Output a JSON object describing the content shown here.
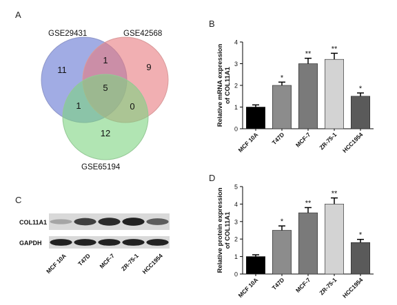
{
  "panels": {
    "a": "A",
    "b": "B",
    "c": "C",
    "d": "D"
  },
  "venn": {
    "sets": [
      {
        "name": "GSE29431",
        "color": "#6f7fd6"
      },
      {
        "name": "GSE42568",
        "color": "#e87a7e"
      },
      {
        "name": "GSE65194",
        "color": "#7dd381"
      }
    ],
    "counts": {
      "only_1": "11",
      "only_2": "9",
      "only_3": "12",
      "s12": "1",
      "s13": "1",
      "s23": "0",
      "s123": "5"
    }
  },
  "blot": {
    "rows": [
      {
        "label": "COL11A1",
        "intensities": [
          0.2,
          0.78,
          0.9,
          0.95,
          0.62
        ]
      },
      {
        "label": "GAPDH",
        "intensities": [
          0.95,
          0.95,
          0.95,
          0.95,
          0.95
        ]
      }
    ],
    "lanes": [
      "MCF 10A",
      "T47D",
      "MCF-7",
      "ZR-75-1",
      "HCC1954"
    ]
  },
  "chart_data": [
    {
      "type": "bar",
      "panel": "B",
      "categories": [
        "MCF 10A",
        "T47D",
        "MCF-7",
        "ZR-75-1",
        "HCC1954"
      ],
      "values": [
        1.0,
        2.0,
        3.0,
        3.2,
        1.5
      ],
      "errors": [
        0.1,
        0.15,
        0.25,
        0.28,
        0.15
      ],
      "significance": [
        "",
        "*",
        "**",
        "**",
        "*"
      ],
      "colors": [
        "#000000",
        "#8c8c8c",
        "#7a7a7a",
        "#d3d3d3",
        "#5a5a5a"
      ],
      "ylabel": "Relative mRNA expression of COL11A1",
      "ylabel_lines": [
        "Relative mRNA expression",
        "of COL11A1"
      ],
      "ylim": [
        0,
        4
      ],
      "yticks": [
        "0",
        "1",
        "2",
        "3",
        "4"
      ]
    },
    {
      "type": "bar",
      "panel": "D",
      "categories": [
        "MCF 10A",
        "T47D",
        "MCF-7",
        "ZR-75-1",
        "HCC1954"
      ],
      "values": [
        1.0,
        2.5,
        3.5,
        4.0,
        1.8
      ],
      "errors": [
        0.1,
        0.25,
        0.3,
        0.35,
        0.18
      ],
      "significance": [
        "",
        "*",
        "**",
        "**",
        "*"
      ],
      "colors": [
        "#000000",
        "#8c8c8c",
        "#7a7a7a",
        "#d3d3d3",
        "#5a5a5a"
      ],
      "ylabel": "Relative protein expression of COL11A1",
      "ylabel_lines": [
        "Relative protein expression",
        "of COL11A1"
      ],
      "ylim": [
        0,
        5
      ],
      "yticks": [
        "0",
        "1",
        "2",
        "3",
        "4",
        "5"
      ]
    }
  ]
}
